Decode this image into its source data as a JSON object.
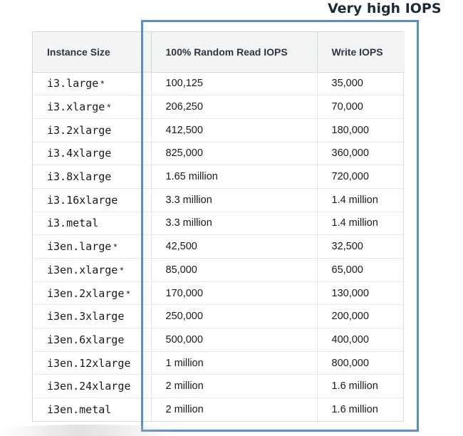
{
  "annotation": {
    "text": "Very high IOPS",
    "box_color": "#5b8fc9"
  },
  "table": {
    "headers": [
      "Instance Size",
      "100% Random Read IOPS",
      "Write IOPS"
    ],
    "rows": [
      {
        "size": "i3.large",
        "star": "*",
        "read": "100,125",
        "write": "35,000"
      },
      {
        "size": "i3.xlarge",
        "star": "*",
        "read": "206,250",
        "write": "70,000"
      },
      {
        "size": "i3.2xlarge",
        "star": "",
        "read": "412,500",
        "write": "180,000"
      },
      {
        "size": "i3.4xlarge",
        "star": "",
        "read": "825,000",
        "write": "360,000"
      },
      {
        "size": "i3.8xlarge",
        "star": "",
        "read": "1.65 million",
        "write": "720,000"
      },
      {
        "size": "i3.16xlarge",
        "star": "",
        "read": "3.3 million",
        "write": "1.4 million"
      },
      {
        "size": "i3.metal",
        "star": "",
        "read": "3.3 million",
        "write": "1.4 million"
      },
      {
        "size": "i3en.large",
        "star": "*",
        "read": "42,500",
        "write": "32,500"
      },
      {
        "size": "i3en.xlarge",
        "star": "*",
        "read": "85,000",
        "write": "65,000"
      },
      {
        "size": "i3en.2xlarge",
        "star": "*",
        "read": "170,000",
        "write": "130,000"
      },
      {
        "size": "i3en.3xlarge",
        "star": "",
        "read": "250,000",
        "write": "200,000"
      },
      {
        "size": "i3en.6xlarge",
        "star": "",
        "read": "500,000",
        "write": "400,000"
      },
      {
        "size": "i3en.12xlarge",
        "star": "",
        "read": "1 million",
        "write": "800,000"
      },
      {
        "size": "i3en.24xlarge",
        "star": "",
        "read": "2 million",
        "write": "1.6 million"
      },
      {
        "size": "i3en.metal",
        "star": "",
        "read": "2 million",
        "write": "1.6 million"
      }
    ]
  }
}
